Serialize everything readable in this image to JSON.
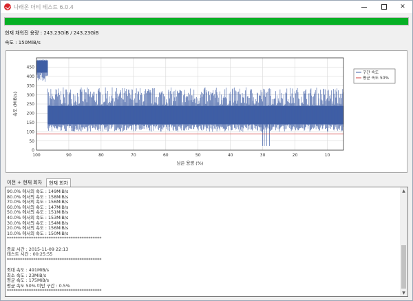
{
  "window": {
    "title": "나래온 더티 테스트 6.0.4",
    "icon": "app-logo-icon",
    "minimize_icon": "minimize-icon",
    "maximize_icon": "maximize-icon",
    "close_icon": "close-icon"
  },
  "progress": {
    "fraction": 1.0,
    "color": "#06b025"
  },
  "info": {
    "capacity": "현재 채워진 용량 : 243.23GiB / 243.23GiB",
    "speed": "속도 : 150MiB/s"
  },
  "chart_data": {
    "type": "area",
    "xlabel": "남은 용량 (%)",
    "ylabel": "속도 (MiB/s)",
    "xlim": [
      100,
      5
    ],
    "ylim": [
      0,
      500
    ],
    "xticks": [
      "100",
      "90",
      "80",
      "70",
      "60",
      "50",
      "40",
      "30",
      "20",
      "10"
    ],
    "yticks": [
      "0",
      "50",
      "100",
      "150",
      "200",
      "250",
      "300",
      "350",
      "400",
      "450"
    ],
    "grid": true,
    "legend_position": "top-right",
    "legend": [
      {
        "label": "구간 속도",
        "color": "#3f5ea5"
      },
      {
        "label": "평균 속도 50%",
        "color": "#d23c3c"
      }
    ],
    "series": [
      {
        "segment": "burst",
        "x_start": 100,
        "x_end": 96.5,
        "low": 365,
        "high": 491,
        "band_low": 420,
        "band_high": 485
      },
      {
        "segment": "sustained",
        "x_start": 96.5,
        "x_end": 5,
        "low": 23,
        "high": 340,
        "band_low": 140,
        "band_high": 240
      }
    ],
    "reference_line": {
      "y": 88
    }
  },
  "tabs": {
    "previous": "이전 + 현재 회차",
    "current": "현재 회차"
  },
  "log": [
    "90.0% 에서의 속도 : 149MiB/s",
    "80.0% 에서의 속도 : 158MiB/s",
    "70.0% 에서의 속도 : 156MiB/s",
    "60.0% 에서의 속도 : 147MiB/s",
    "50.0% 에서의 속도 : 151MiB/s",
    "40.0% 에서의 속도 : 153MiB/s",
    "30.0% 에서의 속도 : 154MiB/s",
    "20.0% 에서의 속도 : 156MiB/s",
    "10.0% 에서의 속도 : 150MiB/s",
    "*******************************************",
    "",
    "종료 시간 : 2015-11-09 22:13",
    "테스트 시간 : 00:25:55",
    "*******************************************",
    "",
    "최대 속도 : 491MiB/s",
    "최소 속도 : 23MiB/s",
    "평균 속도 : 175MiB/s",
    "평균 속도 50% 미만 구간 : 0.5%",
    "*******************************************"
  ],
  "scrollbar": {
    "up_icon": "scroll-up-arrow-icon",
    "down_icon": "scroll-down-arrow-icon"
  }
}
